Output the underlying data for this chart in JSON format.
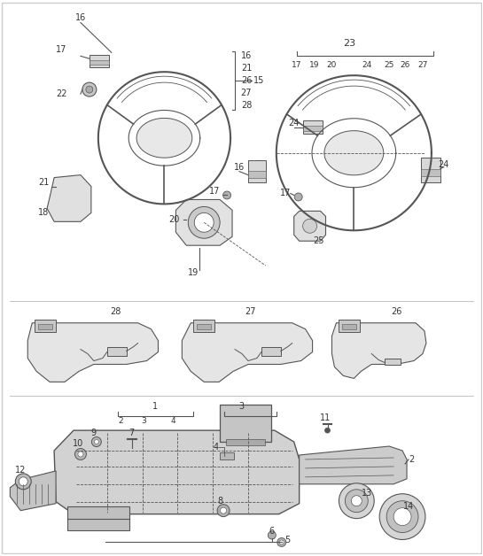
{
  "background_color": "#ffffff",
  "border_color": "#cccccc",
  "figsize": [
    5.45,
    6.28
  ],
  "dpi": 100,
  "line_color": "#555555",
  "text_color": "#333333",
  "label_fontsize": 7,
  "title_fontsize": 8
}
